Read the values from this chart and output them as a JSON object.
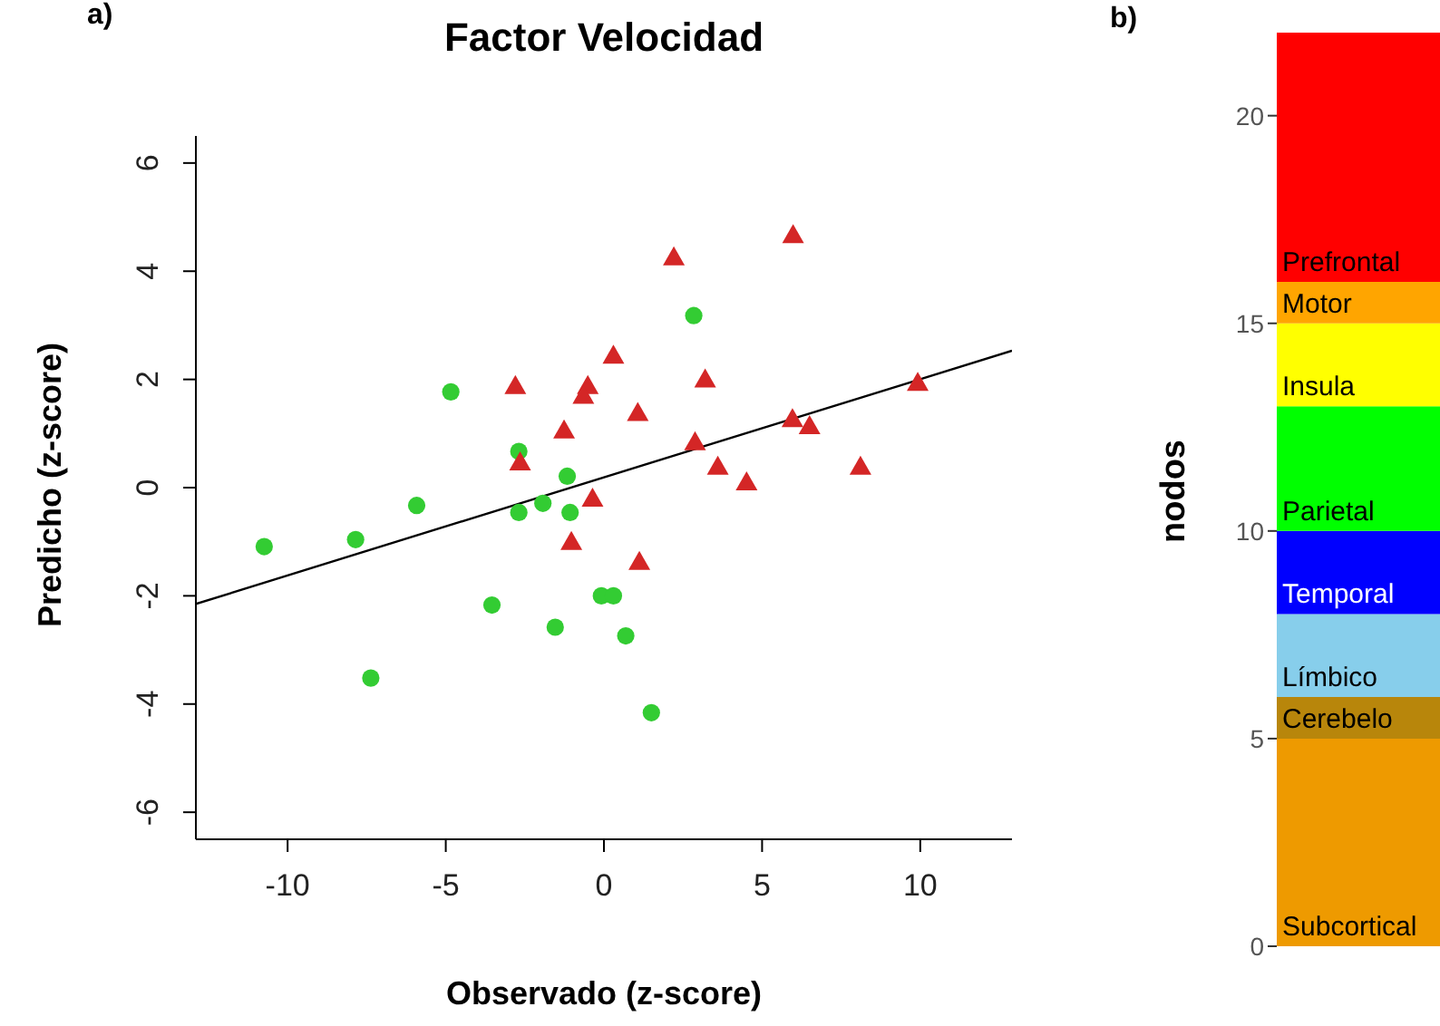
{
  "chart_data": [
    {
      "type": "scatter",
      "title": "Factor Velocidad",
      "xlabel": "Observado (z-score)",
      "ylabel": "Predicho (z-score)",
      "annotations": [
        "a)"
      ],
      "xlim": [
        -12.9,
        12.9
      ],
      "xticks": [
        -10,
        -5,
        0,
        5,
        10
      ],
      "ylim": [
        -6.5,
        6.5
      ],
      "yticks": [
        -6,
        -4,
        -2,
        0,
        2,
        4,
        6
      ],
      "grid": false,
      "legend": false,
      "series": [
        {
          "type": "scatter",
          "marker": "circle",
          "color": "#33cc33",
          "x": [
            -10.74,
            -7.85,
            -5.92,
            -4.84,
            -2.69,
            -2.69,
            -1.93,
            -1.16,
            -1.07,
            -3.54,
            -1.54,
            -7.37,
            2.84,
            -0.08,
            0.3,
            0.69,
            1.5
          ],
          "values": [
            -1.09,
            -0.96,
            -0.33,
            1.77,
            0.67,
            -0.46,
            -0.29,
            0.21,
            -0.46,
            -2.17,
            -2.58,
            -3.52,
            3.18,
            -2.0,
            -2.0,
            -2.74,
            -4.16
          ]
        },
        {
          "type": "scatter",
          "marker": "triangle",
          "color": "#d42626",
          "x": [
            -2.8,
            -0.51,
            -0.65,
            -1.26,
            -2.65,
            -0.36,
            -1.03,
            5.98,
            2.21,
            0.3,
            3.2,
            1.07,
            2.88,
            5.96,
            6.5,
            9.92,
            3.6,
            4.51,
            8.11,
            1.12
          ],
          "values": [
            1.88,
            1.88,
            1.7,
            1.06,
            0.47,
            -0.2,
            -1.0,
            4.67,
            4.26,
            2.44,
            2.0,
            1.38,
            0.84,
            1.27,
            1.14,
            1.94,
            0.39,
            0.1,
            0.39,
            -1.37
          ]
        },
        {
          "type": "line",
          "marker": "none",
          "line_style": "solid",
          "color": "#000000",
          "x": [
            -12.9,
            12.9
          ],
          "values": [
            -2.15,
            2.53
          ]
        }
      ]
    },
    {
      "type": "bar",
      "stacked": true,
      "ylabel": "nodos",
      "annotations": [
        "b)"
      ],
      "categories": [
        null
      ],
      "ylim": [
        0,
        22
      ],
      "yticks": [
        0,
        5,
        10,
        15,
        20
      ],
      "grid": false,
      "legend": false,
      "tick_labels": "y",
      "series": [
        {
          "name": "Subcortical",
          "color": "#ee9a00",
          "values": [
            5
          ]
        },
        {
          "name": "Cerebelo",
          "color": "#b8860b",
          "values": [
            1
          ]
        },
        {
          "name": "Límbico",
          "color": "#87ceeb",
          "values": [
            2
          ]
        },
        {
          "name": "Temporal",
          "color": "#0000ff",
          "values": [
            2
          ]
        },
        {
          "name": "Parietal",
          "color": "#00ff00",
          "values": [
            3
          ]
        },
        {
          "name": "Insula",
          "color": "#ffff00",
          "values": [
            2
          ]
        },
        {
          "name": "Motor",
          "color": "#ffa500",
          "values": [
            1
          ]
        },
        {
          "name": "Prefrontal",
          "color": "#ff0000",
          "values": [
            6
          ]
        }
      ]
    }
  ]
}
